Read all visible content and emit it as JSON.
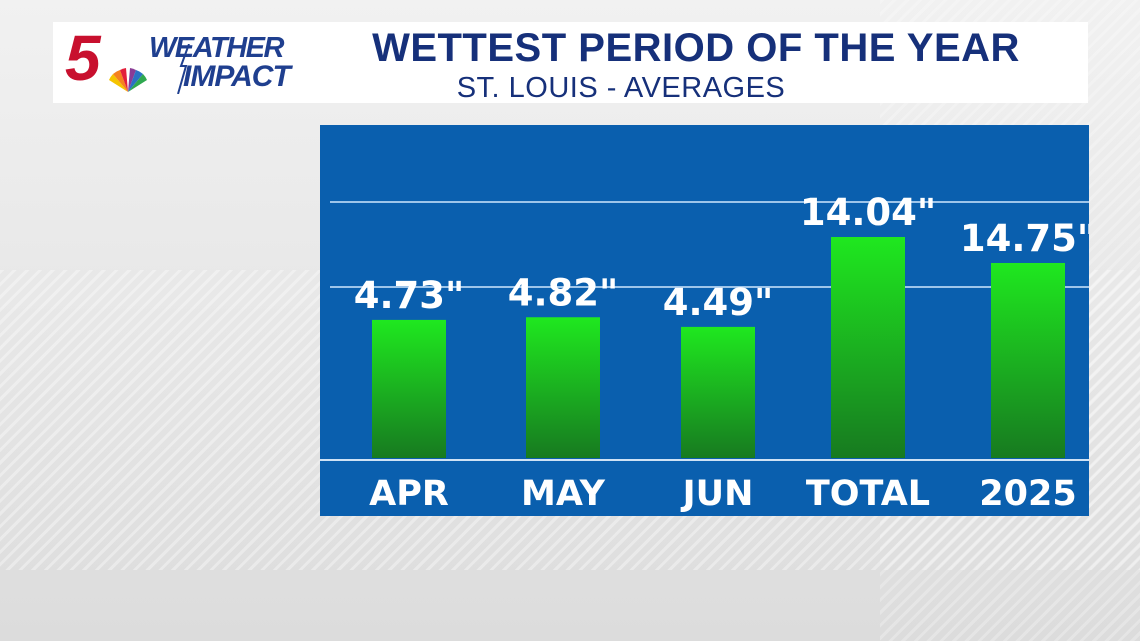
{
  "header": {
    "logo_number": "5",
    "logo_line1": "WEATHER",
    "logo_line2": "IMPACT",
    "title": "WETTEST PERIOD OF THE YEAR",
    "subtitle": "ST. LOUIS - AVERAGES"
  },
  "colors": {
    "panel": "#0a5fae",
    "bar_top": "#1fe81f",
    "bar_bottom": "#177a20",
    "title": "#16307a",
    "logo_red": "#c8102e",
    "logo_blue": "#1f3f8f"
  },
  "chart_data": {
    "type": "bar",
    "categories": [
      "APR",
      "MAY",
      "JUN",
      "TOTAL",
      "2025"
    ],
    "values": [
      4.73,
      4.82,
      4.49,
      14.04,
      14.75
    ],
    "value_labels": [
      "4.73\"",
      "4.82\"",
      "4.49\"",
      "14.04\"",
      "14.75\""
    ],
    "title": "WETTEST PERIOD OF THE YEAR",
    "subtitle": "ST. LOUIS - AVERAGES",
    "gridlines": true
  }
}
